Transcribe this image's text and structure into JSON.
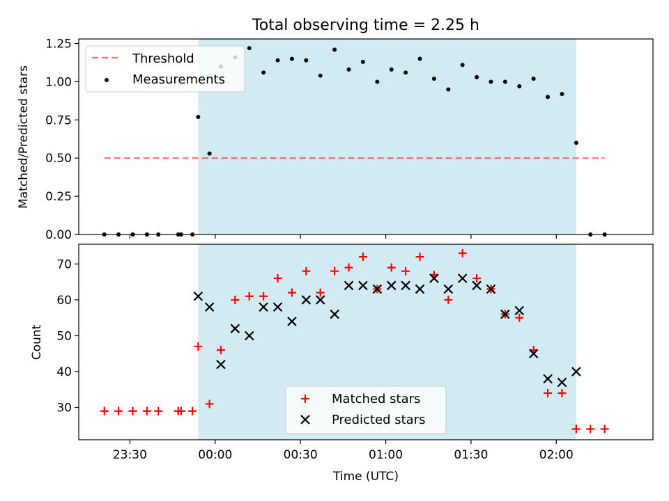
{
  "title": "Total observing time = 2.25 h",
  "colors": {
    "shade": "#add8e6",
    "threshold": "#ff0000",
    "matched": "#ff0000",
    "predicted": "#000000",
    "measurement": "#000000"
  },
  "chart_data": [
    {
      "type": "scatter",
      "title": "Total observing time = 2.25 h",
      "xlabel": "",
      "ylabel": "Matched/Predicted stars",
      "ylim": [
        0.0,
        1.28
      ],
      "yticks": [
        0.0,
        0.25,
        0.5,
        0.75,
        1.0,
        1.25
      ],
      "ytick_labels": [
        "0.00",
        "0.25",
        "0.50",
        "0.75",
        "1.00",
        "1.25"
      ],
      "xlim": [
        "23:12",
        "02:34"
      ],
      "x_tick_labels_shown": false,
      "legend": {
        "placement": "upper-left",
        "entries": [
          "Threshold",
          "Measurements"
        ]
      },
      "shaded_span": {
        "from": "23:54",
        "to": "02:07"
      },
      "threshold": {
        "name": "Threshold",
        "y": 0.5,
        "x_from": "23:21",
        "x_to": "02:17",
        "style": "dashed"
      },
      "series": [
        {
          "name": "Measurements",
          "marker": "dot",
          "points": [
            [
              "23:21",
              0.0
            ],
            [
              "23:26",
              0.0
            ],
            [
              "23:31",
              0.0
            ],
            [
              "23:36",
              0.0
            ],
            [
              "23:40",
              0.0
            ],
            [
              "23:47",
              0.0
            ],
            [
              "23:48",
              0.0
            ],
            [
              "23:52",
              0.0
            ],
            [
              "23:54",
              0.77
            ],
            [
              "23:58",
              0.53
            ],
            [
              "00:02",
              1.1
            ],
            [
              "00:07",
              1.16
            ],
            [
              "00:12",
              1.22
            ],
            [
              "00:17",
              1.06
            ],
            [
              "00:22",
              1.14
            ],
            [
              "00:27",
              1.15
            ],
            [
              "00:32",
              1.14
            ],
            [
              "00:37",
              1.04
            ],
            [
              "00:42",
              1.21
            ],
            [
              "00:47",
              1.08
            ],
            [
              "00:52",
              1.13
            ],
            [
              "00:57",
              1.0
            ],
            [
              "01:02",
              1.08
            ],
            [
              "01:07",
              1.06
            ],
            [
              "01:12",
              1.15
            ],
            [
              "01:17",
              1.02
            ],
            [
              "01:22",
              0.95
            ],
            [
              "01:27",
              1.11
            ],
            [
              "01:32",
              1.03
            ],
            [
              "01:37",
              1.0
            ],
            [
              "01:42",
              1.0
            ],
            [
              "01:47",
              0.97
            ],
            [
              "01:52",
              1.02
            ],
            [
              "01:57",
              0.9
            ],
            [
              "02:02",
              0.92
            ],
            [
              "02:07",
              0.6
            ],
            [
              "02:12",
              0.0
            ],
            [
              "02:17",
              0.0
            ]
          ]
        }
      ]
    },
    {
      "type": "scatter",
      "xlabel": "Time (UTC)",
      "ylabel": "Count",
      "ylim": [
        21,
        75.5
      ],
      "yticks": [
        30,
        40,
        50,
        60,
        70
      ],
      "ytick_labels": [
        "30",
        "40",
        "50",
        "60",
        "70"
      ],
      "xlim": [
        "23:12",
        "02:34"
      ],
      "xticks": [
        "23:30",
        "00:00",
        "00:30",
        "01:00",
        "01:30",
        "02:00"
      ],
      "xtick_labels": [
        "23:30",
        "00:00",
        "00:30",
        "01:00",
        "01:30",
        "02:00"
      ],
      "legend": {
        "placement": "lower-center",
        "entries": [
          "Matched stars",
          "Predicted stars"
        ]
      },
      "shaded_span": {
        "from": "23:54",
        "to": "02:07"
      },
      "series": [
        {
          "name": "Matched stars",
          "marker": "plus",
          "points": [
            [
              "23:21",
              29
            ],
            [
              "23:26",
              29
            ],
            [
              "23:31",
              29
            ],
            [
              "23:36",
              29
            ],
            [
              "23:40",
              29
            ],
            [
              "23:47",
              29
            ],
            [
              "23:48",
              29
            ],
            [
              "23:52",
              29
            ],
            [
              "23:54",
              47
            ],
            [
              "23:58",
              31
            ],
            [
              "00:02",
              46
            ],
            [
              "00:07",
              60
            ],
            [
              "00:12",
              61
            ],
            [
              "00:17",
              61
            ],
            [
              "00:22",
              66
            ],
            [
              "00:27",
              62
            ],
            [
              "00:32",
              68
            ],
            [
              "00:37",
              62
            ],
            [
              "00:42",
              68
            ],
            [
              "00:47",
              69
            ],
            [
              "00:52",
              72
            ],
            [
              "00:57",
              63
            ],
            [
              "01:02",
              69
            ],
            [
              "01:07",
              68
            ],
            [
              "01:12",
              72
            ],
            [
              "01:17",
              67
            ],
            [
              "01:22",
              60
            ],
            [
              "01:27",
              73
            ],
            [
              "01:32",
              66
            ],
            [
              "01:37",
              63
            ],
            [
              "01:42",
              56
            ],
            [
              "01:47",
              55
            ],
            [
              "01:52",
              46
            ],
            [
              "01:57",
              34
            ],
            [
              "02:02",
              34
            ],
            [
              "02:07",
              24
            ],
            [
              "02:12",
              24
            ],
            [
              "02:17",
              24
            ]
          ]
        },
        {
          "name": "Predicted stars",
          "marker": "x",
          "points": [
            [
              "23:54",
              61
            ],
            [
              "23:58",
              58
            ],
            [
              "00:02",
              42
            ],
            [
              "00:07",
              52
            ],
            [
              "00:12",
              50
            ],
            [
              "00:17",
              58
            ],
            [
              "00:22",
              58
            ],
            [
              "00:27",
              54
            ],
            [
              "00:32",
              60
            ],
            [
              "00:37",
              60
            ],
            [
              "00:42",
              56
            ],
            [
              "00:47",
              64
            ],
            [
              "00:52",
              64
            ],
            [
              "00:57",
              63
            ],
            [
              "01:02",
              64
            ],
            [
              "01:07",
              64
            ],
            [
              "01:12",
              63
            ],
            [
              "01:17",
              66
            ],
            [
              "01:22",
              63
            ],
            [
              "01:27",
              66
            ],
            [
              "01:32",
              64
            ],
            [
              "01:37",
              63
            ],
            [
              "01:42",
              56
            ],
            [
              "01:47",
              57
            ],
            [
              "01:52",
              45
            ],
            [
              "01:57",
              38
            ],
            [
              "02:02",
              37
            ],
            [
              "02:07",
              40
            ]
          ]
        }
      ]
    }
  ]
}
